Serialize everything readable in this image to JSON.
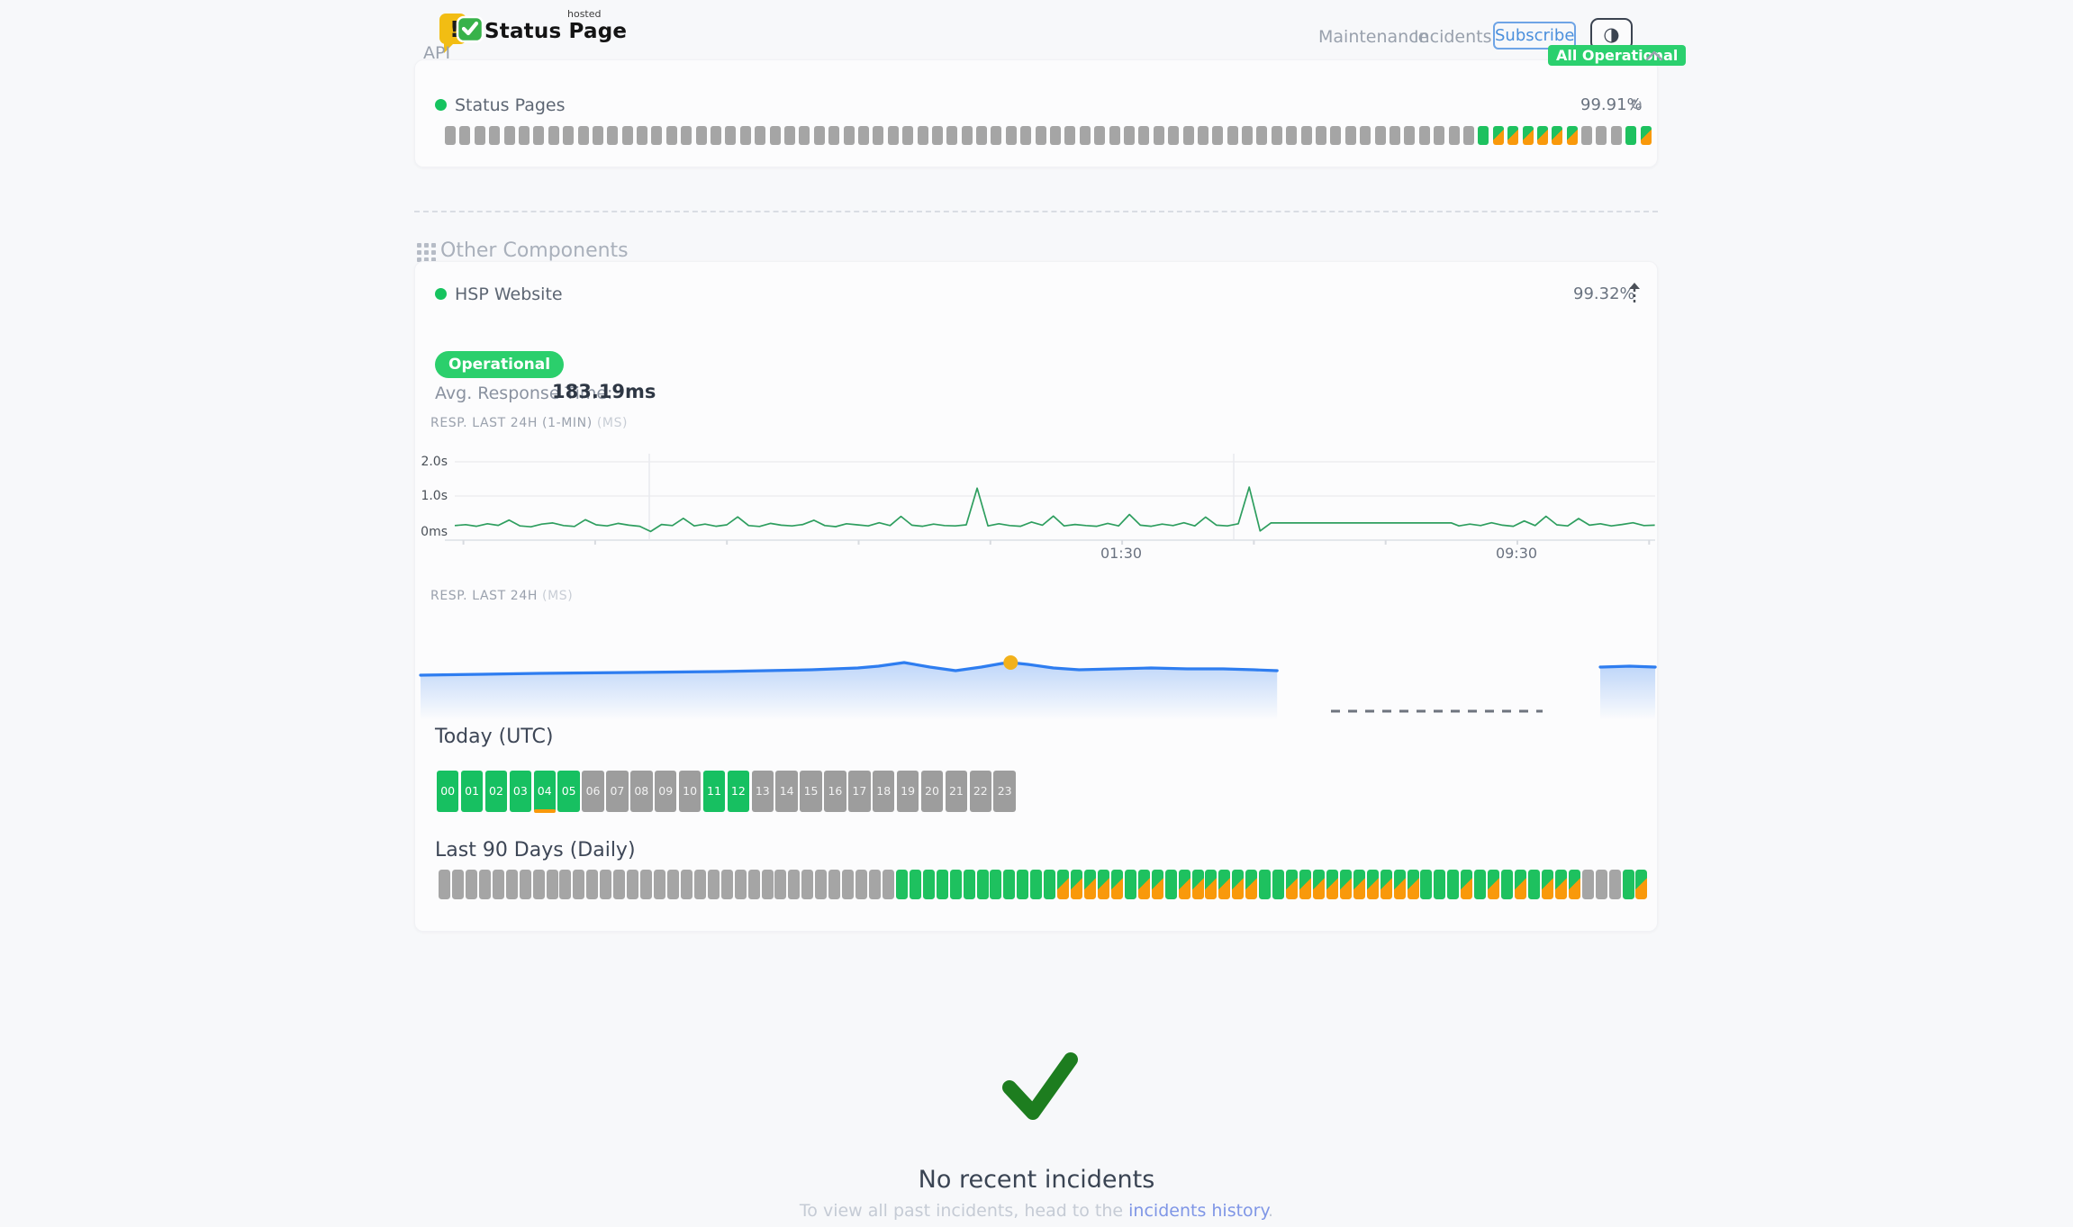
{
  "colors": {
    "page_background": "#f7f8fa",
    "up_green": "#1ec15f",
    "badge_green": "#2bd06e",
    "degraded_orange": "#f9990b",
    "no_data_gray": "#a5a5a5",
    "chart_line_green": "#2e9e5f",
    "chart_line_blue": "#2e7df0",
    "marker_yellow": "#f2b11b",
    "subscribe_blue": "#4a8fdc",
    "link_blue": "#7f96e6",
    "check_green": "#1d7d1f"
  },
  "header": {
    "brand_name": "Status Page",
    "brand_superscript": "hosted",
    "nav": [
      {
        "label": "Maintenance"
      },
      {
        "label": "Incidents"
      }
    ],
    "subscribe_label": "Subscribe",
    "theme_toggle_glyph": "◑",
    "overall_status": "All Operational"
  },
  "api_section": {
    "label": "API",
    "component_name": "Status Pages",
    "uptime": "99.91%",
    "refresh_glyph": "↻",
    "bars": "nnnnnnnnnnnnnnnnnnnnnnnnnnnnnnnnnnnnnnnnnnnnnnnnnnnnnnnnnnnnnnnnnnnnnnuppppppnnnup"
  },
  "components_section": {
    "title": "Other Components",
    "component_name": "HSP Website",
    "uptime": "99.32%",
    "status_badge": "Operational",
    "avg_response_label": "Avg. Response Time:",
    "avg_response_value": "183.19ms",
    "today_title": "Today (UTC)",
    "today_hours": [
      {
        "label": "00",
        "status": "up"
      },
      {
        "label": "01",
        "status": "up"
      },
      {
        "label": "02",
        "status": "up"
      },
      {
        "label": "03",
        "status": "up"
      },
      {
        "label": "04",
        "status": "up",
        "marker": true
      },
      {
        "label": "05",
        "status": "up"
      },
      {
        "label": "06",
        "status": "none"
      },
      {
        "label": "07",
        "status": "none"
      },
      {
        "label": "08",
        "status": "none"
      },
      {
        "label": "09",
        "status": "none"
      },
      {
        "label": "10",
        "status": "none"
      },
      {
        "label": "11",
        "status": "up"
      },
      {
        "label": "12",
        "status": "up"
      },
      {
        "label": "13",
        "status": "none"
      },
      {
        "label": "14",
        "status": "none"
      },
      {
        "label": "15",
        "status": "none"
      },
      {
        "label": "16",
        "status": "none"
      },
      {
        "label": "17",
        "status": "none"
      },
      {
        "label": "18",
        "status": "none"
      },
      {
        "label": "19",
        "status": "none"
      },
      {
        "label": "20",
        "status": "none"
      },
      {
        "label": "21",
        "status": "none"
      },
      {
        "label": "22",
        "status": "none"
      },
      {
        "label": "23",
        "status": "none"
      },
      {
        "label": "",
        "status": "__legend__",
        "marker": false
      }
    ],
    "last90_title": "Last 90 Days (Daily)",
    "last90_days": "nnnnnnnnnnnnnnnnnnnnnnnnnnnnnnnnnnuuuuuuuuuuuupppppuppuppppppuuppppppppppuuupupupupppnnnup"
  },
  "chart_data": [
    {
      "type": "line",
      "title": "RESP. LAST 24H (1-MIN)",
      "unit_label": "(MS)",
      "yticks": [
        "2.0s",
        "1.0s",
        "0ms"
      ],
      "xticks": [
        "01:30",
        "09:30"
      ],
      "ylim_ms": [
        0,
        2300
      ],
      "x_span_hours": 24.26,
      "grid": true,
      "legend_position": "none",
      "series": [
        {
          "name": "response_time_ms",
          "points": [
            [
              0,
              185
            ],
            [
              0.22,
              210
            ],
            [
              0.44,
              165
            ],
            [
              0.66,
              235
            ],
            [
              0.88,
              190
            ],
            [
              1.1,
              340
            ],
            [
              1.32,
              175
            ],
            [
              1.54,
              150
            ],
            [
              1.76,
              225
            ],
            [
              1.98,
              260
            ],
            [
              2.2,
              185
            ],
            [
              2.42,
              160
            ],
            [
              2.64,
              350
            ],
            [
              2.86,
              205
            ],
            [
              3.08,
              175
            ],
            [
              3.3,
              245
            ],
            [
              3.52,
              195
            ],
            [
              3.74,
              165
            ],
            [
              3.96,
              15
            ],
            [
              4.18,
              215
            ],
            [
              4.4,
              185
            ],
            [
              4.62,
              390
            ],
            [
              4.84,
              175
            ],
            [
              5.06,
              225
            ],
            [
              5.28,
              165
            ],
            [
              5.5,
              205
            ],
            [
              5.72,
              430
            ],
            [
              5.94,
              185
            ],
            [
              6.16,
              160
            ],
            [
              6.38,
              245
            ],
            [
              6.6,
              195
            ],
            [
              6.82,
              175
            ],
            [
              7.04,
              215
            ],
            [
              7.26,
              335
            ],
            [
              7.48,
              185
            ],
            [
              7.7,
              155
            ],
            [
              7.92,
              235
            ],
            [
              8.14,
              205
            ],
            [
              8.36,
              175
            ],
            [
              8.58,
              265
            ],
            [
              8.8,
              185
            ],
            [
              9.02,
              445
            ],
            [
              9.24,
              195
            ],
            [
              9.46,
              165
            ],
            [
              9.68,
              225
            ],
            [
              9.9,
              185
            ],
            [
              10.12,
              175
            ],
            [
              10.34,
              205
            ],
            [
              10.56,
              1250
            ],
            [
              10.78,
              175
            ],
            [
              11.0,
              235
            ],
            [
              11.22,
              185
            ],
            [
              11.44,
              165
            ],
            [
              11.66,
              285
            ],
            [
              11.88,
              195
            ],
            [
              12.1,
              455
            ],
            [
              12.32,
              175
            ],
            [
              12.54,
              215
            ],
            [
              12.76,
              185
            ],
            [
              12.98,
              165
            ],
            [
              13.2,
              245
            ],
            [
              13.42,
              175
            ],
            [
              13.64,
              500
            ],
            [
              13.86,
              195
            ],
            [
              14.08,
              165
            ],
            [
              14.3,
              225
            ],
            [
              14.52,
              185
            ],
            [
              14.74,
              265
            ],
            [
              14.96,
              175
            ],
            [
              15.18,
              425
            ],
            [
              15.4,
              195
            ],
            [
              15.62,
              175
            ],
            [
              15.84,
              235
            ],
            [
              16.06,
              1280
            ],
            [
              16.28,
              30
            ],
            [
              16.5,
              260
            ],
            [
              17.0,
              260
            ],
            [
              17.5,
              260
            ],
            [
              18.0,
              260
            ],
            [
              18.5,
              260
            ],
            [
              19.0,
              260
            ],
            [
              19.5,
              260
            ],
            [
              20.0,
              260
            ],
            [
              20.15,
              260
            ],
            [
              20.3,
              175
            ],
            [
              20.52,
              225
            ],
            [
              20.74,
              185
            ],
            [
              20.96,
              265
            ],
            [
              21.18,
              195
            ],
            [
              21.4,
              165
            ],
            [
              21.62,
              315
            ],
            [
              21.84,
              185
            ],
            [
              22.06,
              450
            ],
            [
              22.28,
              205
            ],
            [
              22.5,
              175
            ],
            [
              22.72,
              385
            ],
            [
              22.94,
              195
            ],
            [
              23.16,
              235
            ],
            [
              23.38,
              175
            ],
            [
              23.6,
              215
            ],
            [
              23.82,
              265
            ],
            [
              24.04,
              185
            ],
            [
              24.26,
              195
            ]
          ]
        }
      ]
    },
    {
      "type": "area",
      "title": "RESP. LAST 24H",
      "unit_label": "(MS)",
      "x_span_hours": 24,
      "marker": {
        "t": 11.47,
        "ms": 192
      },
      "gap": {
        "style": "dashed-line",
        "t_range": [
          17.7,
          21.8
        ]
      },
      "series": [
        {
          "name": "avg_response_ms",
          "segments": [
            [
              [
                0,
                178
              ],
              [
                1.2,
                179
              ],
              [
                2.3,
                180
              ],
              [
                4.1,
                181
              ],
              [
                5.8,
                182
              ],
              [
                7.6,
                184
              ],
              [
                8.5,
                186
              ],
              [
                8.9,
                188
              ],
              [
                9.4,
                192
              ],
              [
                9.9,
                187
              ],
              [
                10.4,
                183
              ],
              [
                10.9,
                187
              ],
              [
                11.3,
                191
              ],
              [
                11.47,
                192
              ],
              [
                11.8,
                190
              ],
              [
                12.3,
                186
              ],
              [
                12.8,
                184
              ],
              [
                13.5,
                185
              ],
              [
                14.2,
                186
              ],
              [
                14.9,
                185
              ],
              [
                15.6,
                185
              ],
              [
                16.2,
                184
              ],
              [
                16.65,
                183
              ]
            ],
            [
              [
                22.93,
                187
              ],
              [
                23.5,
                188
              ],
              [
                24,
                187
              ]
            ]
          ]
        }
      ]
    }
  ],
  "incidents": {
    "title": "No recent incidents",
    "note_prefix": "To view all past incidents, head to the ",
    "link_label": "incidents history",
    "note_suffix": "."
  }
}
